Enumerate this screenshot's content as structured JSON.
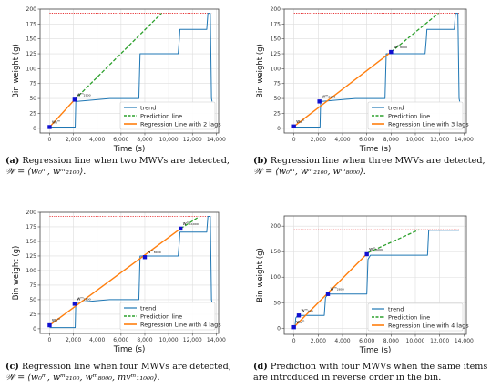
{
  "colors": {
    "trend": "#1f77b4",
    "prediction": "#2ca02c",
    "regression": "#ff7f0e",
    "limit": "#e31a1c",
    "marker": "#1010d0"
  },
  "chart_data": [
    {
      "type": "line",
      "panel": "a",
      "xlabel": "Time (s)",
      "ylabel": "Bin weight (g)",
      "xlim": [
        -800,
        14200
      ],
      "ylim": [
        -8,
        200
      ],
      "xticks": [
        "0",
        "2,000",
        "4,000",
        "6,000",
        "8,000",
        "10,000",
        "12,000",
        "14,000"
      ],
      "xtick_values": [
        0,
        2000,
        4000,
        6000,
        8000,
        10000,
        12000,
        14000
      ],
      "yticks": [
        "0",
        "25",
        "50",
        "75",
        "100",
        "125",
        "150",
        "175",
        "200"
      ],
      "ytick_values": [
        0,
        25,
        50,
        75,
        100,
        125,
        150,
        175,
        200
      ],
      "grid": true,
      "legend_position": "bottom-right",
      "legend": [
        "trend",
        "Prediction line",
        "Regression Line with 2 lags"
      ],
      "limit_line": {
        "y": 193,
        "x": [
          0,
          13600
        ]
      },
      "series": [
        {
          "name": "trend",
          "x": [
            0,
            2050,
            2150,
            2200,
            5050,
            5100,
            5250,
            7500,
            7600,
            7700,
            10800,
            10900,
            10950,
            13200,
            13300,
            13500,
            13600,
            13650
          ],
          "y": [
            2,
            2,
            2,
            45,
            50,
            50,
            50,
            50,
            125,
            125,
            125,
            150,
            166,
            166,
            193,
            193,
            50,
            45
          ]
        },
        {
          "name": "Prediction line",
          "x": [
            2100,
            9400
          ],
          "y": [
            48,
            193
          ]
        },
        {
          "name": "Regression Line with 2 lags",
          "x": [
            0,
            2100
          ],
          "y": [
            2,
            48
          ]
        }
      ],
      "markers": [
        {
          "label": "w₀ᵐ",
          "x": 0,
          "y": 2
        },
        {
          "label": "wᵐ₂₁₀₀",
          "x": 2100,
          "y": 48
        }
      ]
    },
    {
      "type": "line",
      "panel": "b",
      "xlabel": "Time (s)",
      "ylabel": "Bin weight (g)",
      "xlim": [
        -800,
        14200
      ],
      "ylim": [
        -8,
        200
      ],
      "xticks": [
        "0",
        "2,000",
        "4,000",
        "6,000",
        "8,000",
        "10,000",
        "12,000",
        "14,000"
      ],
      "xtick_values": [
        0,
        2000,
        4000,
        6000,
        8000,
        10000,
        12000,
        14000
      ],
      "yticks": [
        "0",
        "25",
        "50",
        "75",
        "100",
        "125",
        "150",
        "175",
        "200"
      ],
      "ytick_values": [
        0,
        25,
        50,
        75,
        100,
        125,
        150,
        175,
        200
      ],
      "grid": true,
      "legend_position": "bottom-right",
      "legend": [
        "trend",
        "Prediction line",
        "Regression Line with 3 lags"
      ],
      "limit_line": {
        "y": 193,
        "x": [
          0,
          13600
        ]
      },
      "series": [
        {
          "name": "trend",
          "x": [
            0,
            2050,
            2150,
            2200,
            5050,
            5100,
            5250,
            7500,
            7600,
            7700,
            10800,
            10900,
            10950,
            13200,
            13300,
            13500,
            13600,
            13650
          ],
          "y": [
            2,
            2,
            2,
            45,
            50,
            50,
            50,
            50,
            125,
            125,
            125,
            150,
            166,
            166,
            193,
            193,
            50,
            45
          ]
        },
        {
          "name": "Prediction line",
          "x": [
            8000,
            11900
          ],
          "y": [
            128,
            193
          ]
        },
        {
          "name": "Regression Line with 3 lags",
          "x": [
            0,
            8000
          ],
          "y": [
            3,
            128
          ]
        }
      ],
      "markers": [
        {
          "label": "w₀ᵐ",
          "x": 0,
          "y": 3
        },
        {
          "label": "wᵐ₂₁₀₀",
          "x": 2100,
          "y": 45
        },
        {
          "label": "wᵐ₈₀₀₀",
          "x": 8000,
          "y": 128
        }
      ]
    },
    {
      "type": "line",
      "panel": "c",
      "xlabel": "Time (s)",
      "ylabel": "Bin weight (g)",
      "xlim": [
        -800,
        14200
      ],
      "ylim": [
        -8,
        200
      ],
      "xticks": [
        "0",
        "2,000",
        "4,000",
        "6,000",
        "8,000",
        "10,000",
        "12,000",
        "14,000"
      ],
      "xtick_values": [
        0,
        2000,
        4000,
        6000,
        8000,
        10000,
        12000,
        14000
      ],
      "yticks": [
        "0",
        "25",
        "50",
        "75",
        "100",
        "125",
        "150",
        "175",
        "200"
      ],
      "ytick_values": [
        0,
        25,
        50,
        75,
        100,
        125,
        150,
        175,
        200
      ],
      "grid": true,
      "legend_position": "bottom-right",
      "legend": [
        "trend",
        "Prediction line",
        "Regression Line with 4 lags"
      ],
      "limit_line": {
        "y": 193,
        "x": [
          0,
          13600
        ]
      },
      "series": [
        {
          "name": "trend",
          "x": [
            0,
            2050,
            2150,
            2200,
            5050,
            5100,
            5250,
            7500,
            7600,
            7700,
            10800,
            10900,
            10950,
            13200,
            13300,
            13500,
            13600,
            13650
          ],
          "y": [
            2,
            2,
            2,
            45,
            50,
            50,
            50,
            50,
            125,
            125,
            125,
            150,
            166,
            166,
            193,
            193,
            50,
            45
          ]
        },
        {
          "name": "Prediction line",
          "x": [
            11000,
            12600
          ],
          "y": [
            172,
            193
          ]
        },
        {
          "name": "Regression Line with 4 lags",
          "x": [
            0,
            11000
          ],
          "y": [
            6,
            172
          ]
        }
      ],
      "markers": [
        {
          "label": "w₀ᵐ",
          "x": 0,
          "y": 6
        },
        {
          "label": "wᵐ₂₁₀₀",
          "x": 2100,
          "y": 43
        },
        {
          "label": "wᵐ₈₀₀₀",
          "x": 8000,
          "y": 123
        },
        {
          "label": "wᵐ₁₁₀₀₀",
          "x": 11000,
          "y": 172
        }
      ]
    },
    {
      "type": "line",
      "panel": "d",
      "xlabel": "Time (s)",
      "ylabel": "Bin weight (g)",
      "xlim": [
        -800,
        14200
      ],
      "ylim": [
        -12,
        220
      ],
      "xticks": [
        "0",
        "2,000",
        "4,000",
        "6,000",
        "8,000",
        "10,000",
        "12,000",
        "14,000"
      ],
      "xtick_values": [
        0,
        2000,
        4000,
        6000,
        8000,
        10000,
        12000,
        14000
      ],
      "yticks": [
        "0",
        "50",
        "100",
        "150",
        "200"
      ],
      "ytick_values": [
        0,
        50,
        100,
        150,
        200
      ],
      "grid": true,
      "legend_position": "bottom-right",
      "legend": [
        "trend",
        "Prediction line",
        "Regression Line with 4 lags"
      ],
      "limit_line": {
        "y": 193,
        "x": [
          0,
          13600
        ]
      },
      "series": [
        {
          "name": "trend",
          "x": [
            0,
            80,
            150,
            300,
            400,
            2500,
            2600,
            2800,
            6000,
            6100,
            6300,
            11000,
            11100,
            11300,
            13600
          ],
          "y": [
            0,
            0,
            20,
            25,
            25,
            25,
            60,
            67,
            67,
            135,
            143,
            143,
            192,
            192,
            192
          ]
        },
        {
          "name": "Prediction line",
          "x": [
            6100,
            10300
          ],
          "y": [
            148,
            193
          ]
        },
        {
          "name": "Regression Line with 4 lags",
          "x": [
            0,
            6100
          ],
          "y": [
            2,
            148
          ]
        }
      ],
      "markers": [
        {
          "label": "w₀ᵐ",
          "x": 0,
          "y": 2
        },
        {
          "label": "wᵐ₄₀₀",
          "x": 400,
          "y": 25
        },
        {
          "label": "wᵐ₂₈₀₀",
          "x": 2800,
          "y": 67
        },
        {
          "label": "wᵐ₆₀₀₀",
          "x": 6000,
          "y": 145
        }
      ]
    }
  ],
  "captions": {
    "a": {
      "tag": "(a)",
      "text": "Regression line when two MWVs are detected,",
      "formula": "𝒲 = ⟨w₀ᵐ, wᵐ₂₁₀₀⟩."
    },
    "b": {
      "tag": "(b)",
      "text": "Regression line when three MWVs are detected,",
      "formula": "𝒲 = ⟨w₀ᵐ, wᵐ₂₁₀₀, wᵐ₈₀₀₀⟩."
    },
    "c": {
      "tag": "(c)",
      "text": "Regression line when four MWVs are detected,",
      "formula": "𝒲 = ⟨w₀ᵐ, wᵐ₂₁₀₀, wᵐ₈₀₀₀, mvᵐ₁₁₀₀₀⟩."
    },
    "d": {
      "tag": "(d)",
      "text": "Prediction with four MWVs when the same items are introduced in reverse order in the bin.",
      "formula": ""
    }
  }
}
